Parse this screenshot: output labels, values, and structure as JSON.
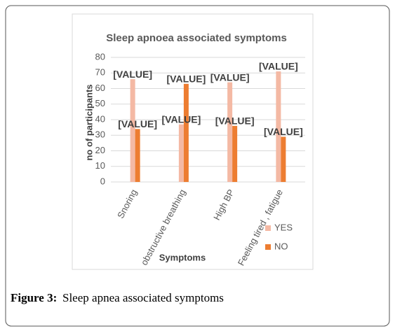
{
  "chart_data": {
    "type": "bar",
    "title": "Sleep apnoea associated symptoms",
    "x_label": "Symptoms",
    "y_label": "no of participants",
    "categories": [
      "Snoring",
      "obstructive breathing",
      "High BP",
      "Feeling tired , fatigue"
    ],
    "series": [
      {
        "name": "YES",
        "color": "#f4b9a4",
        "values": [
          66,
          37,
          64,
          71
        ],
        "value_labels": [
          "[VALUE]",
          "[VALUE]",
          "[VALUE]",
          "[VALUE]"
        ]
      },
      {
        "name": "NO",
        "color": "#ed7d31",
        "values": [
          34,
          63,
          36,
          29
        ],
        "value_labels": [
          "[VALUE]",
          "[VALUE]",
          "[VALUE]",
          "[VALUE]"
        ]
      }
    ],
    "ylim": [
      0,
      80
    ],
    "yticks": [
      0,
      10,
      20,
      30,
      40,
      50,
      60,
      70,
      80
    ],
    "grid": true,
    "legend": "bottom-right"
  },
  "figure": {
    "label": "Figure 3:",
    "caption": "Sleep apnea associated symptoms"
  }
}
